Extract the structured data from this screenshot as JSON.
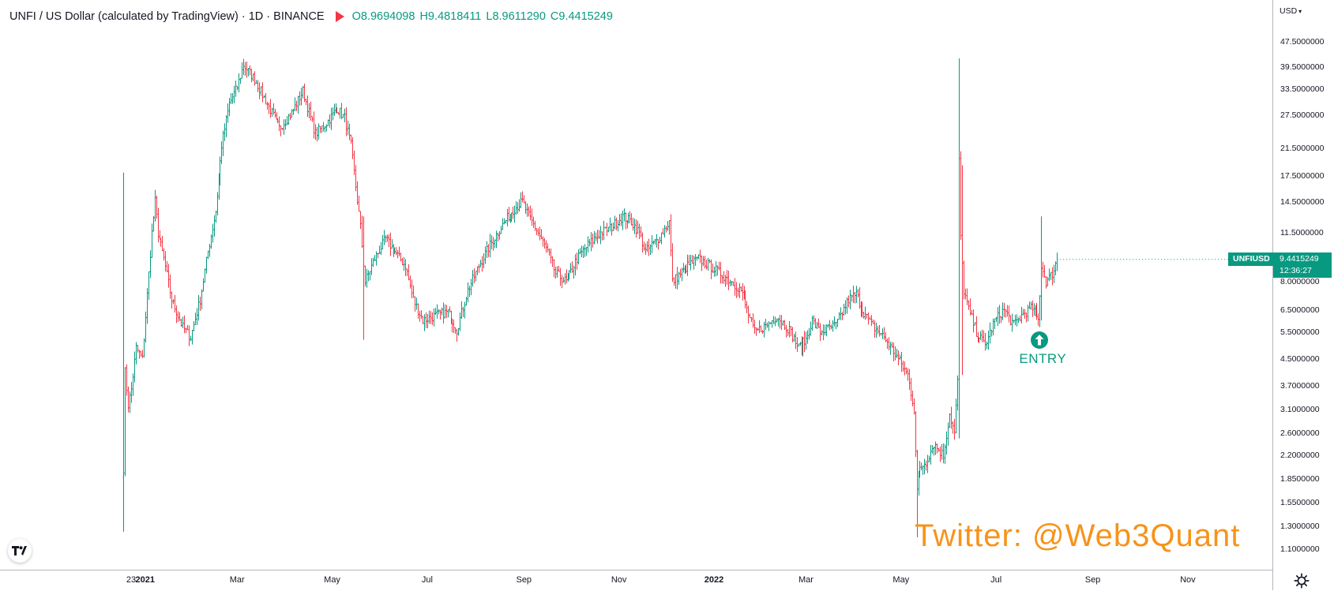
{
  "header": {
    "title": "UNFI / US Dollar (calculated by TradingView) · 1D · BINANCE",
    "open": "O8.9694098",
    "high": "H9.4818411",
    "low": "L8.9611290",
    "close": "C9.4415249"
  },
  "price_axis": {
    "currency": "USD",
    "symbol_tag": "UNFIUSD",
    "last_price": "9.4415249",
    "countdown": "12:36:27"
  },
  "annotations": {
    "entry_label": "ENTRY",
    "watermark": "Twitter: @Web3Quant"
  },
  "colors": {
    "up": "#089981",
    "down": "#f23645",
    "watermark": "#f7931a"
  },
  "icons": [
    "flag-icon",
    "entry-arrow-icon",
    "tradingview-logo-icon",
    "settings-gear-icon"
  ],
  "chart_data": {
    "type": "bar",
    "style": "ohlc",
    "scale": "log",
    "yticks": [
      1.1,
      1.3,
      1.55,
      1.85,
      2.2,
      2.6,
      3.1,
      3.7,
      4.5,
      5.5,
      6.5,
      8.0,
      9.5,
      11.5,
      14.5,
      17.5,
      21.5,
      27.5,
      33.5,
      39.5,
      47.5
    ],
    "ytick_labels": [
      "1.1000000",
      "1.3000000",
      "1.5500000",
      "1.8500000",
      "2.2000000",
      "2.6000000",
      "3.1000000",
      "3.7000000",
      "4.5000000",
      "5.5000000",
      "6.5000000",
      "8.0000000",
      "9.5000000",
      "11.5000000",
      "14.5000000",
      "17.5000000",
      "21.5000000",
      "27.5000000",
      "33.5000000",
      "39.5000000",
      "47.5000000"
    ],
    "xtick_labels": [
      "23",
      "2021",
      "Mar",
      "May",
      "Jul",
      "Sep",
      "Nov",
      "2022",
      "Mar",
      "May",
      "Jul",
      "Sep",
      "Nov"
    ],
    "xtick_dates": [
      "2020-12-23",
      "2021-01-01",
      "2021-03-01",
      "2021-05-01",
      "2021-07-01",
      "2021-09-01",
      "2021-11-01",
      "2022-01-01",
      "2022-03-01",
      "2022-05-01",
      "2022-07-01",
      "2022-09-01",
      "2022-11-01"
    ],
    "year_ticks": [
      "2021",
      "2022"
    ],
    "xlim": [
      "2020-12-04",
      "2022-12-01"
    ],
    "ylim": [
      1.0,
      55.0
    ],
    "grid": false,
    "first_bar": "2020-12-18",
    "last_bar": "2022-08-09",
    "price_path": [
      [
        "2020-12-18",
        2.0
      ],
      [
        "2020-12-19",
        4.1
      ],
      [
        "2020-12-21",
        3.2
      ],
      [
        "2020-12-23",
        3.6
      ],
      [
        "2020-12-26",
        4.9
      ],
      [
        "2020-12-30",
        4.5
      ],
      [
        "2021-01-03",
        8.5
      ],
      [
        "2021-01-05",
        11.5
      ],
      [
        "2021-01-07",
        14.5
      ],
      [
        "2021-01-09",
        11.5
      ],
      [
        "2021-01-13",
        9.5
      ],
      [
        "2021-01-18",
        7.0
      ],
      [
        "2021-01-25",
        5.7
      ],
      [
        "2021-01-30",
        5.3
      ],
      [
        "2021-02-05",
        7.0
      ],
      [
        "2021-02-10",
        10.0
      ],
      [
        "2021-02-15",
        13.5
      ],
      [
        "2021-02-19",
        22.0
      ],
      [
        "2021-02-24",
        30.0
      ],
      [
        "2021-03-01",
        34.0
      ],
      [
        "2021-03-05",
        40.0
      ],
      [
        "2021-03-12",
        36.0
      ],
      [
        "2021-03-20",
        30.0
      ],
      [
        "2021-03-28",
        25.0
      ],
      [
        "2021-04-05",
        28.0
      ],
      [
        "2021-04-12",
        33.0
      ],
      [
        "2021-04-20",
        24.0
      ],
      [
        "2021-04-27",
        26.0
      ],
      [
        "2021-05-04",
        29.0
      ],
      [
        "2021-05-09",
        27.0
      ],
      [
        "2021-05-13",
        22.0
      ],
      [
        "2021-05-19",
        12.0
      ],
      [
        "2021-05-22",
        8.0
      ],
      [
        "2021-05-28",
        9.5
      ],
      [
        "2021-06-04",
        11.0
      ],
      [
        "2021-06-10",
        10.0
      ],
      [
        "2021-06-17",
        9.0
      ],
      [
        "2021-06-22",
        7.0
      ],
      [
        "2021-06-28",
        6.0
      ],
      [
        "2021-07-05",
        6.2
      ],
      [
        "2021-07-14",
        6.4
      ],
      [
        "2021-07-20",
        5.6
      ],
      [
        "2021-07-27",
        7.5
      ],
      [
        "2021-08-03",
        9.0
      ],
      [
        "2021-08-10",
        10.5
      ],
      [
        "2021-08-17",
        12.0
      ],
      [
        "2021-08-24",
        13.5
      ],
      [
        "2021-08-31",
        14.5
      ],
      [
        "2021-09-04",
        13.0
      ],
      [
        "2021-09-08",
        12.0
      ],
      [
        "2021-09-12",
        11.0
      ],
      [
        "2021-09-16",
        10.0
      ],
      [
        "2021-09-21",
        8.5
      ],
      [
        "2021-09-28",
        8.0
      ],
      [
        "2021-10-05",
        9.5
      ],
      [
        "2021-10-12",
        10.5
      ],
      [
        "2021-10-20",
        11.5
      ],
      [
        "2021-10-27",
        12.0
      ],
      [
        "2021-11-03",
        13.0
      ],
      [
        "2021-11-09",
        12.5
      ],
      [
        "2021-11-14",
        11.5
      ],
      [
        "2021-11-18",
        10.0
      ],
      [
        "2021-11-26",
        11.0
      ],
      [
        "2021-12-03",
        12.5
      ],
      [
        "2021-12-05",
        8.0
      ],
      [
        "2021-12-10",
        8.5
      ],
      [
        "2021-12-15",
        9.0
      ],
      [
        "2021-12-22",
        9.5
      ],
      [
        "2021-12-29",
        9.0
      ],
      [
        "2022-01-05",
        8.5
      ],
      [
        "2022-01-12",
        8.0
      ],
      [
        "2022-01-18",
        7.5
      ],
      [
        "2022-01-22",
        6.5
      ],
      [
        "2022-01-27",
        5.5
      ],
      [
        "2022-02-04",
        5.8
      ],
      [
        "2022-02-10",
        6.2
      ],
      [
        "2022-02-18",
        5.6
      ],
      [
        "2022-02-24",
        4.9
      ],
      [
        "2022-03-01",
        5.2
      ],
      [
        "2022-03-05",
        6.0
      ],
      [
        "2022-03-10",
        5.5
      ],
      [
        "2022-03-20",
        5.8
      ],
      [
        "2022-03-28",
        7.0
      ],
      [
        "2022-04-02",
        7.3
      ],
      [
        "2022-04-06",
        6.5
      ],
      [
        "2022-04-12",
        5.8
      ],
      [
        "2022-04-20",
        5.3
      ],
      [
        "2022-04-28",
        4.6
      ],
      [
        "2022-05-05",
        4.0
      ],
      [
        "2022-05-09",
        3.1
      ],
      [
        "2022-05-11",
        1.7
      ],
      [
        "2022-05-13",
        2.0
      ],
      [
        "2022-05-17",
        2.1
      ],
      [
        "2022-05-22",
        2.4
      ],
      [
        "2022-05-28",
        2.2
      ],
      [
        "2022-06-01",
        3.0
      ],
      [
        "2022-06-04",
        2.6
      ],
      [
        "2022-06-06",
        3.8
      ],
      [
        "2022-06-07",
        20.0
      ],
      [
        "2022-06-08",
        11.0
      ],
      [
        "2022-06-10",
        7.5
      ],
      [
        "2022-06-13",
        6.5
      ],
      [
        "2022-06-18",
        5.5
      ],
      [
        "2022-06-24",
        5.0
      ],
      [
        "2022-06-30",
        6.0
      ],
      [
        "2022-07-06",
        6.5
      ],
      [
        "2022-07-12",
        5.8
      ],
      [
        "2022-07-18",
        6.3
      ],
      [
        "2022-07-24",
        6.6
      ],
      [
        "2022-07-28",
        6.0
      ],
      [
        "2022-07-30",
        9.0
      ],
      [
        "2022-08-02",
        8.0
      ],
      [
        "2022-08-06",
        8.5
      ],
      [
        "2022-08-09",
        9.44
      ]
    ],
    "spikes": [
      {
        "date": "2020-12-18",
        "high": 18.0,
        "low": 1.25
      },
      {
        "date": "2021-05-21",
        "high": 13.0,
        "low": 5.2
      },
      {
        "date": "2022-05-11",
        "high": 2.3,
        "low": 1.2
      },
      {
        "date": "2022-06-07",
        "high": 42.0,
        "low": 2.5
      },
      {
        "date": "2022-06-09",
        "high": 19.0,
        "low": 4.0
      },
      {
        "date": "2022-07-30",
        "high": 13.0,
        "low": 6.0
      }
    ],
    "last_price": 9.4415249,
    "entry_marker": {
      "date": "2022-07-29",
      "price": 5.2,
      "label": "ENTRY"
    }
  }
}
